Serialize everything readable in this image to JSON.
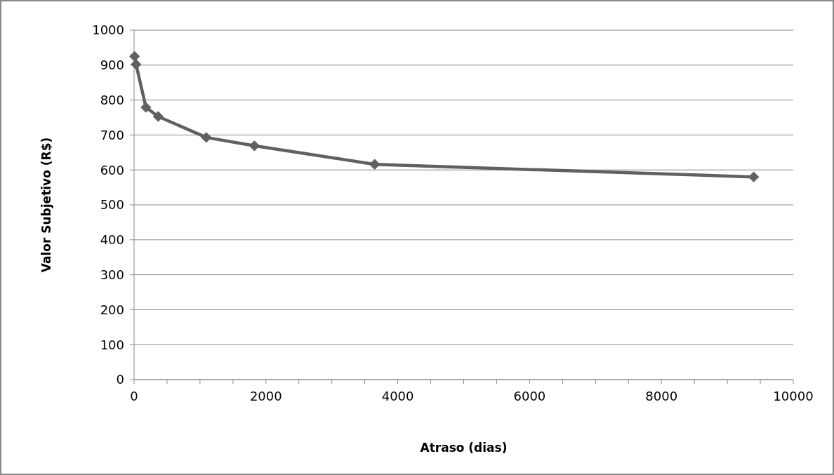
{
  "chart_data": {
    "type": "line",
    "xlabel": "Atraso (dias)",
    "ylabel": "Valor Subjetivo (R$)",
    "x": [
      7,
      30,
      180,
      365,
      1095,
      1825,
      3650,
      9400
    ],
    "series": [
      {
        "color": "#606060",
        "values": [
          925,
          902,
          779,
          753,
          693,
          669,
          616,
          580
        ]
      }
    ],
    "xlim": [
      0,
      10000
    ],
    "ylim": [
      0,
      1000
    ],
    "xticks": [
      0,
      {
        "value": 500,
        "label": null
      },
      2000,
      {
        "value": 1000,
        "label": null
      },
      {
        "value": 1500,
        "label": null
      },
      {
        "value": 2500,
        "label": null
      },
      {
        "value": 3000,
        "label": null
      },
      {
        "value": 3500,
        "label": null
      },
      4000,
      {
        "value": 4500,
        "label": null
      },
      {
        "value": 5000,
        "label": null
      },
      {
        "value": 5500,
        "label": null
      },
      6000,
      {
        "value": 6500,
        "label": null
      },
      {
        "value": 7000,
        "label": null
      },
      {
        "value": 7500,
        "label": null
      },
      8000,
      {
        "value": 8500,
        "label": null
      },
      {
        "value": 9000,
        "label": null
      },
      {
        "value": 9500,
        "label": null
      },
      10000
    ],
    "yticks": [
      0,
      100,
      200,
      300,
      400,
      500,
      600,
      700,
      800,
      900,
      1000
    ],
    "grid": "y",
    "marker": "diamond",
    "line_style": "solid"
  }
}
